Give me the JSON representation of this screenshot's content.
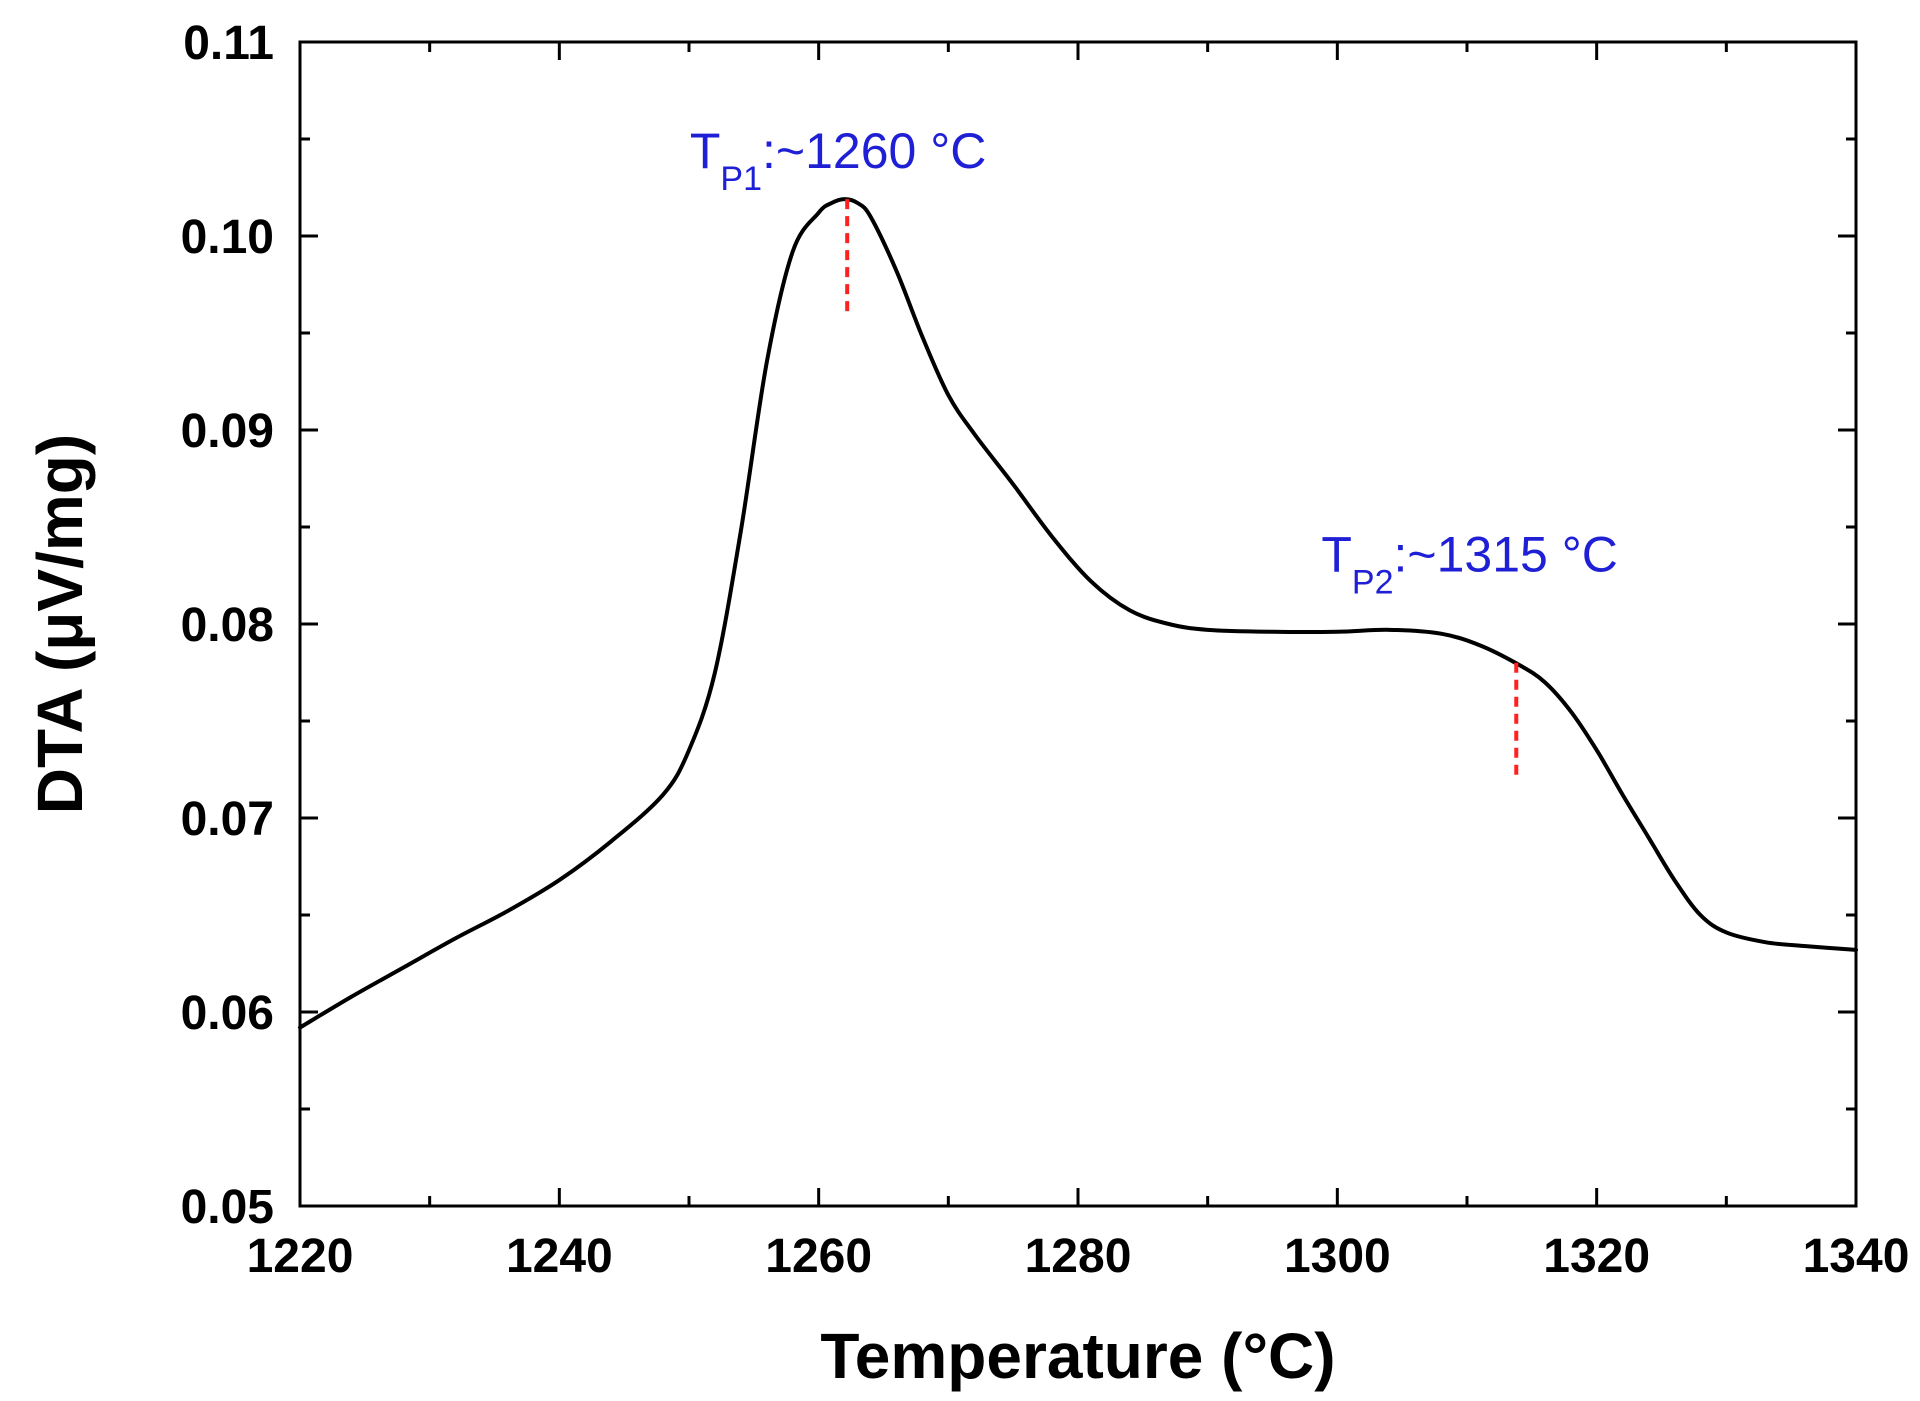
{
  "chart_data": {
    "type": "line",
    "title": "",
    "xlabel": "Temperature (°C)",
    "ylabel": "DTA (μV/mg)",
    "xlim": [
      1220,
      1340
    ],
    "ylim": [
      0.05,
      0.11
    ],
    "x_ticks": [
      1220,
      1240,
      1260,
      1280,
      1300,
      1320,
      1340
    ],
    "x_tick_labels": [
      "1220",
      "1240",
      "1260",
      "1280",
      "1300",
      "1320",
      "1340"
    ],
    "y_ticks": [
      0.05,
      0.06,
      0.07,
      0.08,
      0.09,
      0.1,
      0.11
    ],
    "y_tick_labels": [
      "0.05",
      "0.06",
      "0.07",
      "0.08",
      "0.09",
      "0.10",
      "0.11"
    ],
    "grid": false,
    "series": [
      {
        "name": "DTA",
        "color": "#000000",
        "x": [
          1220,
          1224,
          1228,
          1232,
          1236,
          1240,
          1244,
          1248,
          1250,
          1252,
          1254,
          1256,
          1258,
          1260,
          1261,
          1262,
          1263,
          1264,
          1266,
          1268,
          1270,
          1272,
          1275,
          1278,
          1281,
          1284,
          1287,
          1290,
          1295,
          1300,
          1304,
          1308,
          1311,
          1314,
          1316,
          1318,
          1320,
          1322,
          1324,
          1326,
          1328,
          1330,
          1333,
          1336,
          1340
        ],
        "values": [
          0.0592,
          0.0608,
          0.0623,
          0.0638,
          0.0652,
          0.0668,
          0.0688,
          0.0712,
          0.0735,
          0.0775,
          0.0848,
          0.0935,
          0.0992,
          0.1012,
          0.1017,
          0.1019,
          0.1017,
          0.101,
          0.0982,
          0.0948,
          0.0918,
          0.0898,
          0.0872,
          0.0845,
          0.0822,
          0.0807,
          0.08,
          0.0797,
          0.0796,
          0.0796,
          0.0797,
          0.0795,
          0.0789,
          0.0779,
          0.077,
          0.0755,
          0.0735,
          0.0712,
          0.069,
          0.0668,
          0.065,
          0.0641,
          0.0636,
          0.0634,
          0.0632
        ]
      }
    ],
    "annotations": [
      {
        "name": "peak-1",
        "main": "T",
        "sub": "P1",
        "rest": ":~1260 °C",
        "x": 1262.2,
        "y_top": 0.1019,
        "y_bottom": 0.096,
        "text_x": 1261.5,
        "text_y": 0.1035
      },
      {
        "name": "peak-2",
        "main": "T",
        "sub": "P2",
        "rest": ":~1315 °C",
        "x": 1313.8,
        "y_top": 0.078,
        "y_bottom": 0.072,
        "text_x": 1310.2,
        "text_y": 0.0827
      }
    ],
    "annotation_text_color": "#1f1fd6",
    "annotation_marker_color": "#ff2020",
    "line_color": "#000000"
  }
}
